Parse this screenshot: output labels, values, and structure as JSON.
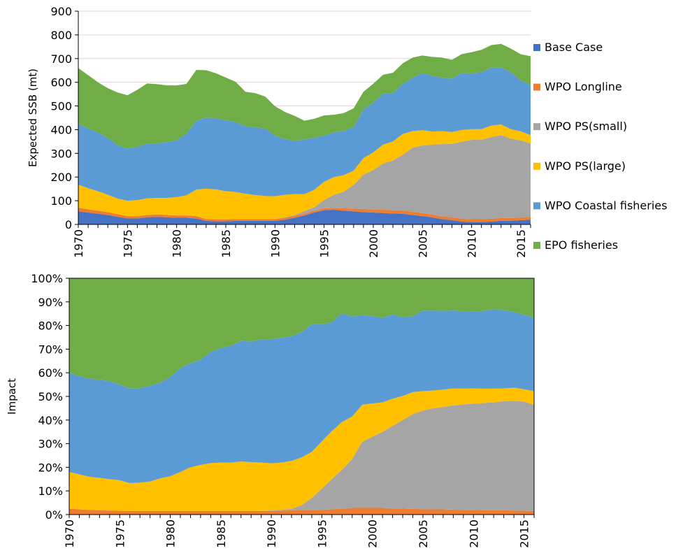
{
  "chart_data": [
    {
      "type": "area",
      "stacked": true,
      "title": "",
      "xlabel": "",
      "ylabel": "Expected SSB (mt)",
      "xlim": [
        1970,
        2016
      ],
      "ylim": [
        0,
        900
      ],
      "y_ticks": [
        "0",
        "100",
        "200",
        "300",
        "400",
        "500",
        "600",
        "700",
        "800",
        "900"
      ],
      "x_ticks": [
        "1970",
        "1975",
        "1980",
        "1985",
        "1990",
        "1995",
        "2000",
        "2005",
        "2010",
        "2015"
      ],
      "grid": true,
      "legend_position": "right",
      "x": [
        1970,
        1971,
        1972,
        1973,
        1974,
        1975,
        1976,
        1977,
        1978,
        1979,
        1980,
        1981,
        1982,
        1983,
        1984,
        1985,
        1986,
        1987,
        1988,
        1989,
        1990,
        1991,
        1992,
        1993,
        1994,
        1995,
        1996,
        1997,
        1998,
        1999,
        2000,
        2001,
        2002,
        2003,
        2004,
        2005,
        2006,
        2007,
        2008,
        2009,
        2010,
        2011,
        2012,
        2013,
        2014,
        2015,
        2016
      ],
      "series": [
        {
          "name": "Base Case",
          "color": "#4472c4",
          "values": [
            55,
            50,
            45,
            40,
            32,
            25,
            25,
            30,
            32,
            30,
            28,
            28,
            25,
            15,
            13,
            13,
            15,
            15,
            15,
            15,
            15,
            20,
            28,
            38,
            50,
            60,
            62,
            58,
            55,
            52,
            50,
            48,
            46,
            45,
            40,
            35,
            30,
            22,
            18,
            12,
            10,
            10,
            12,
            15,
            15,
            18,
            20
          ]
        },
        {
          "name": "WPO Longline",
          "color": "#ed7d31",
          "values": [
            15,
            14,
            13,
            12,
            11,
            10,
            10,
            10,
            10,
            10,
            10,
            10,
            10,
            8,
            8,
            8,
            8,
            8,
            8,
            8,
            8,
            8,
            8,
            8,
            8,
            8,
            8,
            10,
            12,
            13,
            14,
            14,
            14,
            14,
            14,
            13,
            12,
            12,
            12,
            12,
            12,
            12,
            12,
            12,
            12,
            12,
            12
          ]
        },
        {
          "name": "WPO PS(small)",
          "color": "#a5a5a5",
          "values": [
            0,
            0,
            0,
            0,
            0,
            0,
            0,
            0,
            0,
            0,
            0,
            0,
            0,
            0,
            0,
            0,
            0,
            0,
            0,
            0,
            0,
            2,
            3,
            10,
            15,
            35,
            55,
            70,
            100,
            145,
            165,
            195,
            210,
            235,
            270,
            285,
            295,
            305,
            310,
            325,
            335,
            335,
            345,
            350,
            335,
            325,
            310
          ]
        },
        {
          "name": "WPO PS(large)",
          "color": "#ffc000",
          "values": [
            97,
            89,
            82,
            73,
            66,
            65,
            68,
            70,
            70,
            72,
            77,
            85,
            112,
            128,
            127,
            119,
            114,
            107,
            101,
            97,
            96,
            95,
            89,
            72,
            73,
            77,
            75,
            70,
            60,
            70,
            75,
            80,
            80,
            88,
            70,
            65,
            55,
            55,
            50,
            50,
            45,
            45,
            48,
            45,
            40,
            38,
            35
          ]
        },
        {
          "name": "WPO Coastal fisheries",
          "color": "#5b9bd5",
          "values": [
            258,
            252,
            248,
            240,
            225,
            220,
            225,
            230,
            230,
            235,
            240,
            260,
            290,
            300,
            300,
            300,
            295,
            285,
            285,
            285,
            255,
            235,
            225,
            230,
            220,
            195,
            188,
            187,
            183,
            205,
            210,
            215,
            205,
            210,
            225,
            240,
            235,
            225,
            225,
            240,
            235,
            240,
            245,
            240,
            240,
            215,
            210
          ]
        },
        {
          "name": "EPO fisheries",
          "color": "#70ad47",
          "values": [
            235,
            225,
            212,
            210,
            223,
            225,
            240,
            255,
            250,
            240,
            232,
            210,
            215,
            200,
            190,
            180,
            170,
            145,
            145,
            135,
            125,
            115,
            105,
            80,
            80,
            85,
            75,
            75,
            80,
            75,
            80,
            80,
            85,
            88,
            85,
            75,
            80,
            85,
            80,
            80,
            90,
            95,
            95,
            100,
            100,
            110,
            123
          ]
        }
      ]
    },
    {
      "type": "area",
      "stacked": true,
      "percent": true,
      "title": "",
      "xlabel": "",
      "ylabel": "Impact",
      "xlim": [
        1970,
        2016
      ],
      "ylim": [
        0,
        100
      ],
      "y_ticks": [
        "0%",
        "10%",
        "20%",
        "30%",
        "40%",
        "50%",
        "60%",
        "70%",
        "80%",
        "90%",
        "100%"
      ],
      "x_ticks": [
        "1970",
        "1975",
        "1980",
        "1985",
        "1990",
        "1995",
        "2000",
        "2005",
        "2010",
        "2015"
      ],
      "grid": false,
      "x": [
        1970,
        1971,
        1972,
        1973,
        1974,
        1975,
        1976,
        1977,
        1978,
        1979,
        1980,
        1981,
        1982,
        1983,
        1984,
        1985,
        1986,
        1987,
        1988,
        1989,
        1990,
        1991,
        1992,
        1993,
        1994,
        1995,
        1996,
        1997,
        1998,
        1999,
        2000,
        2001,
        2002,
        2003,
        2004,
        2005,
        2006,
        2007,
        2008,
        2009,
        2010,
        2011,
        2012,
        2013,
        2014,
        2015,
        2016
      ],
      "series": [
        {
          "name": "WPO Longline",
          "color": "#ed7d31",
          "values": [
            2.5,
            2.2,
            2,
            1.8,
            1.7,
            1.6,
            1.5,
            1.5,
            1.5,
            1.5,
            1.5,
            1.5,
            1.5,
            1.5,
            1.5,
            1.5,
            1.5,
            1.5,
            1.5,
            1.5,
            1.5,
            1.6,
            1.8,
            2,
            2,
            2,
            2.2,
            2.5,
            2.8,
            2.8,
            2.8,
            2.8,
            2.6,
            2.5,
            2.4,
            2.3,
            2.2,
            2.2,
            2.1,
            2,
            2,
            1.9,
            1.8,
            1.8,
            1.7,
            1.6,
            1.5
          ]
        },
        {
          "name": "WPO PS(small)",
          "color": "#a5a5a5",
          "values": [
            0,
            0,
            0,
            0,
            0,
            0,
            0,
            0,
            0,
            0,
            0,
            0,
            0,
            0,
            0,
            0,
            0,
            0,
            0,
            0,
            0.2,
            0.4,
            0.6,
            2,
            5,
            9,
            12.8,
            16.5,
            20.7,
            28,
            30.2,
            32.2,
            34.9,
            37.5,
            40.1,
            41.7,
            42.8,
            43.3,
            44.1,
            44.6,
            44.9,
            45.3,
            45.7,
            46.2,
            46.4,
            46.2,
            45
          ]
        },
        {
          "name": "WPO PS(large)",
          "color": "#ffc000",
          "values": [
            15.5,
            14.8,
            14,
            13.7,
            13.3,
            12.9,
            11.8,
            12,
            12.5,
            13.8,
            14.7,
            16.5,
            18.5,
            19.5,
            20.3,
            20.5,
            20.5,
            21,
            20.7,
            20.5,
            20,
            20,
            20.3,
            20.2,
            19.5,
            20,
            20.4,
            20.2,
            18,
            15.7,
            14,
            12.5,
            11.5,
            10.2,
            9.3,
            8.2,
            7.5,
            7.4,
            7.2,
            6.7,
            6.5,
            6.1,
            5.8,
            5.4,
            5.6,
            5.2,
            5.8
          ]
        },
        {
          "name": "WPO Coastal fisheries",
          "color": "#5b9bd5",
          "values": [
            42,
            41.5,
            41.5,
            41.5,
            41.5,
            40.5,
            40,
            40,
            40.5,
            40.5,
            42,
            44,
            44,
            44.5,
            47,
            48.5,
            49.5,
            51,
            51,
            52,
            52.5,
            52.8,
            52.8,
            53,
            54,
            49.5,
            46,
            46,
            42.3,
            38,
            37,
            35.7,
            35.7,
            33.4,
            32.1,
            34.1,
            33.8,
            33.3,
            33,
            32.7,
            32.4,
            32.9,
            33.6,
            33.1,
            32,
            31.6,
            31
          ]
        },
        {
          "name": "EPO fisheries",
          "color": "#70ad47",
          "values": [
            40,
            41.5,
            42.5,
            43,
            43.5,
            45,
            46.7,
            46.5,
            45.5,
            44.2,
            41.8,
            38,
            36,
            34.5,
            31.2,
            29.5,
            28.5,
            26.5,
            26.8,
            26,
            25.8,
            25.2,
            24.5,
            22.8,
            19.5,
            19.5,
            18.6,
            14.8,
            16.2,
            15.5,
            16,
            16.8,
            15.3,
            16.4,
            16.1,
            13.7,
            13.7,
            13.8,
            13.6,
            14,
            14.2,
            13.8,
            13.1,
            13.5,
            14.3,
            15.4,
            16.7
          ]
        }
      ]
    }
  ]
}
